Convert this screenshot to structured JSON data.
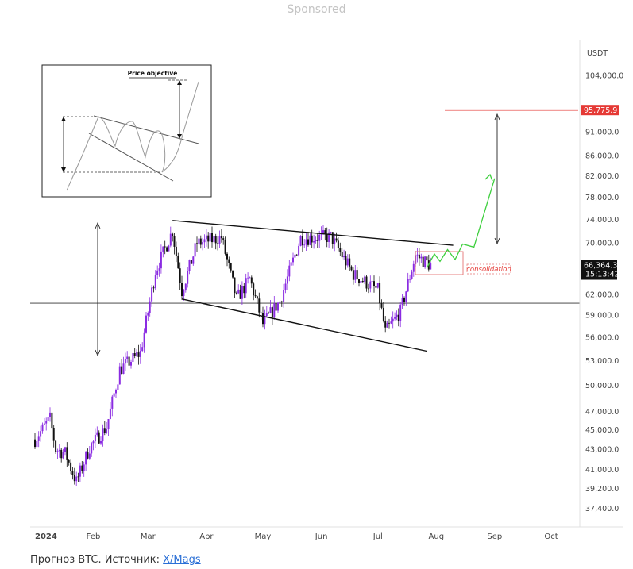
{
  "header": {
    "sponsored": "Sponsored"
  },
  "caption": {
    "text": "Прогноз BTC. Источник: ",
    "link": "X/Mags"
  },
  "inset": {
    "label": "Price objective"
  },
  "chart_data": {
    "type": "candlestick",
    "y_scale": "log",
    "currency": "USDT",
    "y_ticks": [
      "104,000.0",
      "95,775.9",
      "91,000.0",
      "86,000.0",
      "82,000.0",
      "78,000.0",
      "74,000.0",
      "70,000.0",
      "66,364.3",
      "62,000.0",
      "59,000.0",
      "56,000.0",
      "53,000.0",
      "50,000.0",
      "47,000.0",
      "45,000.0",
      "43,000.0",
      "41,000.0",
      "39,200.0",
      "37,400.0"
    ],
    "y_tick_values": [
      104000,
      91000,
      86000,
      82000,
      78000,
      74000,
      70000,
      62000,
      59000,
      56000,
      53000,
      50000,
      47000,
      45000,
      43000,
      41000,
      39200,
      37400
    ],
    "x_ticks": [
      "2024",
      "Feb",
      "Mar",
      "Apr",
      "May",
      "Jun",
      "Jul",
      "Aug",
      "Sep",
      "Oct"
    ],
    "x_tick_dates": [
      "2024-01-01",
      "2024-02-01",
      "2024-03-01",
      "2024-04-01",
      "2024-05-01",
      "2024-06-01",
      "2024-07-01",
      "2024-08-01",
      "2024-09-01",
      "2024-10-01"
    ],
    "target_price": {
      "value": 95775.9,
      "label": "95,775.9",
      "color": "#e53935"
    },
    "current_price": {
      "value": 66364.3,
      "label": "66,364.3",
      "countdown": "15:13:42"
    },
    "support_line": 60700,
    "annotation": "consolidation",
    "trendlines": [
      {
        "name": "upper",
        "from": [
          "2024-03-14",
          73800
        ],
        "to": [
          "2024-08-10",
          69600
        ]
      },
      {
        "name": "lower",
        "from": [
          "2024-03-19",
          61300
        ],
        "to": [
          "2024-07-27",
          54200
        ]
      }
    ],
    "projection_path": [
      [
        "2024-07-27",
        66000
      ],
      [
        "2024-07-31",
        68200
      ],
      [
        "2024-08-03",
        67000
      ],
      [
        "2024-08-07",
        68900
      ],
      [
        "2024-08-11",
        67300
      ],
      [
        "2024-08-15",
        69800
      ],
      [
        "2024-08-21",
        69300
      ],
      [
        "2024-09-01",
        81500
      ]
    ],
    "ohlc_anchor_closes": [
      [
        "2024-01-01",
        44000
      ],
      [
        "2024-01-09",
        46200
      ],
      [
        "2024-01-12",
        43000
      ],
      [
        "2024-01-17",
        42600
      ],
      [
        "2024-01-23",
        39800
      ],
      [
        "2024-01-30",
        43200
      ],
      [
        "2024-02-08",
        45300
      ],
      [
        "2024-02-15",
        51900
      ],
      [
        "2024-02-26",
        54000
      ],
      [
        "2024-03-05",
        65500
      ],
      [
        "2024-03-14",
        72000
      ],
      [
        "2024-03-19",
        62500
      ],
      [
        "2024-03-27",
        69900
      ],
      [
        "2024-04-09",
        70900
      ],
      [
        "2024-04-17",
        61300
      ],
      [
        "2024-04-24",
        64300
      ],
      [
        "2024-05-01",
        57800
      ],
      [
        "2024-05-10",
        61000
      ],
      [
        "2024-05-21",
        70800
      ],
      [
        "2024-06-06",
        71000
      ],
      [
        "2024-06-18",
        65000
      ],
      [
        "2024-07-01",
        62600
      ],
      [
        "2024-07-05",
        56700
      ],
      [
        "2024-07-13",
        59500
      ],
      [
        "2024-07-21",
        68000
      ],
      [
        "2024-07-29",
        66364
      ]
    ]
  }
}
